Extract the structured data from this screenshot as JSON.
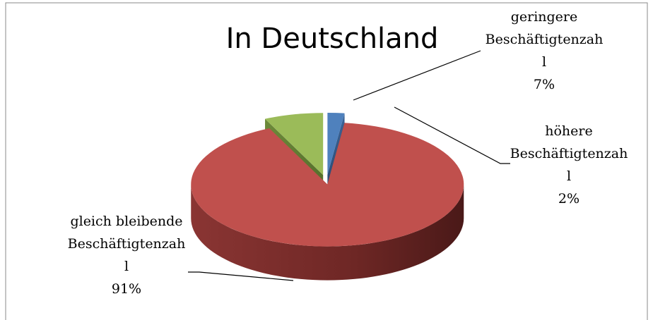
{
  "chart_data": {
    "type": "pie",
    "title": "In Deutschland",
    "categories": [
      "höhere Beschäftigtenzahl",
      "gleich bleibende Beschäftigtenzahl",
      "geringere Beschäftigtenzahl"
    ],
    "values": [
      2,
      91,
      7
    ],
    "value_labels": [
      "2%",
      "91%",
      "7%"
    ],
    "colors": [
      "#4f81bd",
      "#c0504d",
      "#9bbb59"
    ]
  }
}
